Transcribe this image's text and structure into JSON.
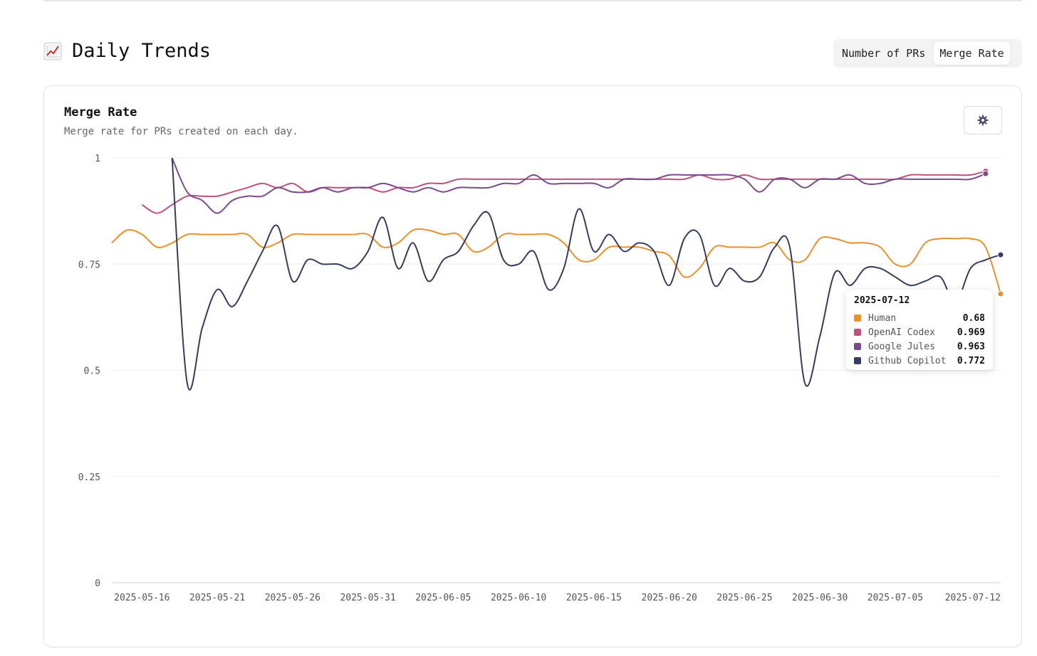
{
  "section": {
    "title": "Daily Trends",
    "icon": "chart-increasing-icon"
  },
  "toggle": {
    "options": [
      "Number of PRs",
      "Merge Rate"
    ],
    "active": "Merge Rate"
  },
  "card": {
    "title": "Merge Rate",
    "subtitle": "Merge rate for PRs created on each day.",
    "settings_icon": "gear-icon"
  },
  "colors": {
    "Human": "#e8922f",
    "OpenAI Codex": "#c2507f",
    "Google Jules": "#7b4a8e",
    "Github Copilot": "#353c5f"
  },
  "tooltip": {
    "date": "2025-07-12",
    "rows": [
      {
        "name": "Human",
        "value": "0.68"
      },
      {
        "name": "OpenAI Codex",
        "value": "0.969"
      },
      {
        "name": "Google Jules",
        "value": "0.963"
      },
      {
        "name": "Github Copilot",
        "value": "0.772"
      }
    ]
  },
  "chart_data": {
    "type": "line",
    "title": "Merge Rate",
    "xlabel": "",
    "ylabel": "",
    "ylim": [
      0,
      1
    ],
    "yticks": [
      "0",
      "0.25",
      "0.5",
      "0.75",
      "1"
    ],
    "xticks": [
      "2025-05-16",
      "2025-05-21",
      "2025-05-26",
      "2025-05-31",
      "2025-06-05",
      "2025-06-10",
      "2025-06-15",
      "2025-06-20",
      "2025-06-25",
      "2025-06-30",
      "2025-07-05",
      "2025-07-12"
    ],
    "x_start": "2025-05-14",
    "x_end": "2025-07-12",
    "grid": true,
    "legend": "none",
    "series": [
      {
        "name": "Human",
        "values": [
          0.8,
          0.83,
          0.82,
          0.79,
          0.8,
          0.82,
          0.82,
          0.82,
          0.82,
          0.82,
          0.79,
          0.8,
          0.82,
          0.82,
          0.82,
          0.82,
          0.82,
          0.82,
          0.79,
          0.8,
          0.83,
          0.83,
          0.82,
          0.82,
          0.78,
          0.79,
          0.82,
          0.82,
          0.82,
          0.82,
          0.8,
          0.76,
          0.76,
          0.79,
          0.79,
          0.79,
          0.78,
          0.77,
          0.72,
          0.74,
          0.79,
          0.79,
          0.79,
          0.79,
          0.8,
          0.76,
          0.76,
          0.81,
          0.81,
          0.8,
          0.8,
          0.79,
          0.75,
          0.75,
          0.8,
          0.81,
          0.81,
          0.81,
          0.79,
          0.68
        ]
      },
      {
        "name": "OpenAI Codex",
        "start_index": 2,
        "values": [
          0.89,
          0.87,
          0.89,
          0.91,
          0.91,
          0.91,
          0.92,
          0.93,
          0.94,
          0.93,
          0.94,
          0.92,
          0.93,
          0.93,
          0.93,
          0.93,
          0.92,
          0.93,
          0.93,
          0.94,
          0.94,
          0.95,
          0.95,
          0.95,
          0.95,
          0.95,
          0.95,
          0.95,
          0.95,
          0.95,
          0.95,
          0.95,
          0.95,
          0.95,
          0.95,
          0.95,
          0.95,
          0.96,
          0.95,
          0.95,
          0.96,
          0.95,
          0.95,
          0.95,
          0.95,
          0.95,
          0.95,
          0.95,
          0.95,
          0.95,
          0.95,
          0.96,
          0.96,
          0.96,
          0.96,
          0.96,
          0.969
        ]
      },
      {
        "name": "Google Jules",
        "start_index": 4,
        "values": [
          1.0,
          0.92,
          0.9,
          0.87,
          0.9,
          0.91,
          0.91,
          0.93,
          0.92,
          0.92,
          0.93,
          0.92,
          0.93,
          0.93,
          0.94,
          0.93,
          0.92,
          0.93,
          0.92,
          0.93,
          0.93,
          0.93,
          0.94,
          0.94,
          0.96,
          0.94,
          0.94,
          0.94,
          0.94,
          0.93,
          0.95,
          0.95,
          0.95,
          0.96,
          0.96,
          0.96,
          0.96,
          0.96,
          0.95,
          0.92,
          0.95,
          0.95,
          0.93,
          0.95,
          0.95,
          0.96,
          0.94,
          0.94,
          0.95,
          0.95,
          0.95,
          0.95,
          0.95,
          0.95,
          0.963
        ]
      },
      {
        "name": "Github Copilot",
        "start_index": 4,
        "values": [
          1.0,
          0.47,
          0.6,
          0.69,
          0.65,
          0.71,
          0.78,
          0.84,
          0.71,
          0.76,
          0.75,
          0.75,
          0.74,
          0.78,
          0.86,
          0.74,
          0.8,
          0.71,
          0.76,
          0.78,
          0.84,
          0.87,
          0.76,
          0.75,
          0.78,
          0.69,
          0.74,
          0.88,
          0.78,
          0.82,
          0.78,
          0.8,
          0.78,
          0.7,
          0.81,
          0.82,
          0.7,
          0.74,
          0.71,
          0.72,
          0.79,
          0.79,
          0.47,
          0.58,
          0.73,
          0.7,
          0.74,
          0.74,
          0.72,
          0.7,
          0.71,
          0.72,
          0.66,
          0.74,
          0.76,
          0.772
        ]
      }
    ]
  }
}
